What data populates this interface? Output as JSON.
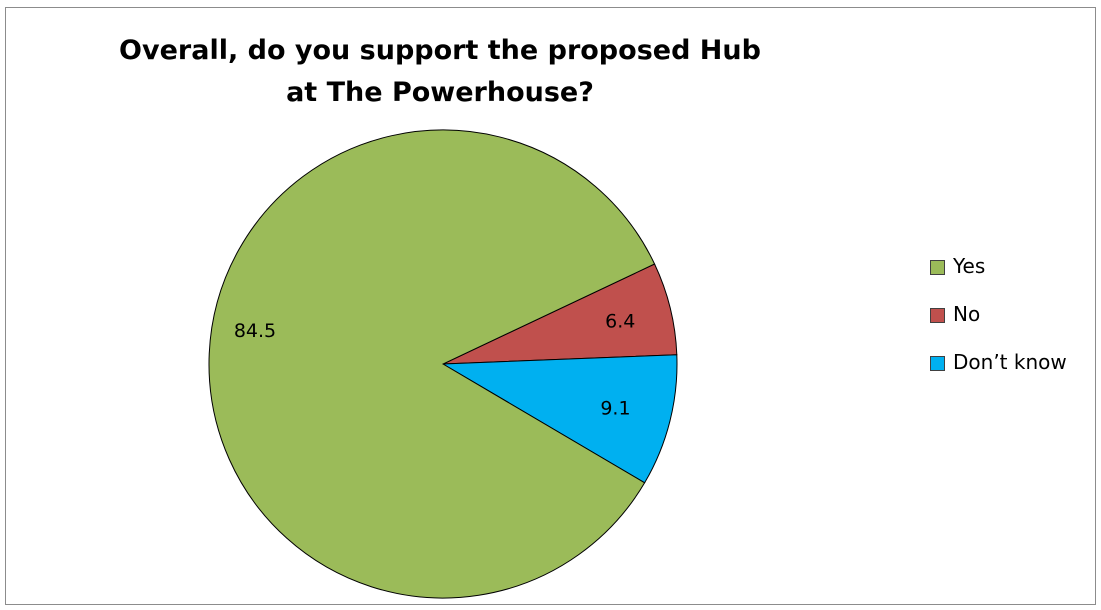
{
  "chart_data": {
    "type": "pie",
    "title": "Overall, do you support the proposed Hub at The Powerhouse?",
    "slices": [
      {
        "label": "Yes",
        "value": 84.5,
        "color": "#9bbb59"
      },
      {
        "label": "No",
        "value": 6.4,
        "color": "#c0504d"
      },
      {
        "label": "Don’t know",
        "value": 9.1,
        "color": "#00b0f0"
      }
    ],
    "legend": {
      "position": "right"
    }
  }
}
